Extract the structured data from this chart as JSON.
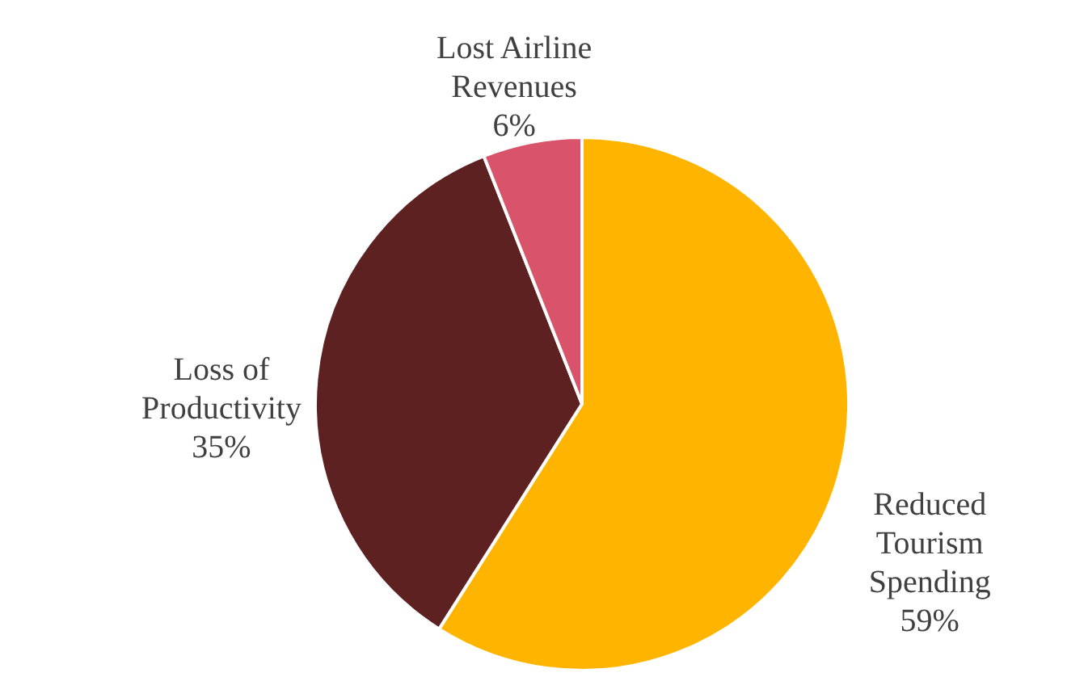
{
  "chart_data": {
    "type": "pie",
    "categories": [
      "Reduced Tourism Spending",
      "Loss of Productivity",
      "Lost Airline Revenues"
    ],
    "values": [
      59,
      35,
      6
    ],
    "colors": [
      "#ffb400",
      "#5e2121",
      "#d9536a"
    ],
    "value_labels": [
      "59%",
      "35%",
      "6%"
    ]
  }
}
